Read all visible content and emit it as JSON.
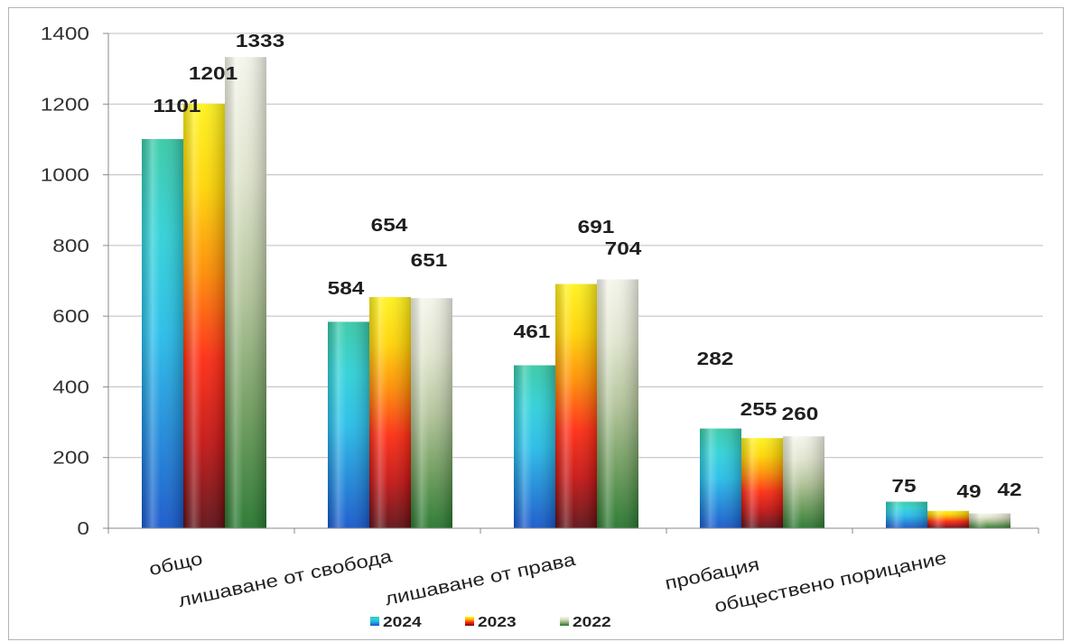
{
  "chart_data": {
    "type": "bar",
    "categories": [
      "общо",
      "лишаване от свобода",
      "лишаване от права",
      "пробация",
      "обществено порицание"
    ],
    "series": [
      {
        "name": "2024",
        "values": [
          1101,
          584,
          461,
          282,
          75
        ],
        "color": "#27c3e3"
      },
      {
        "name": "2023",
        "values": [
          1201,
          654,
          691,
          255,
          49
        ],
        "color": "#ff3a12"
      },
      {
        "name": "2022",
        "values": [
          1333,
          651,
          704,
          260,
          42
        ],
        "color": "#8db27a"
      }
    ],
    "ylim": [
      0,
      1400
    ],
    "yticks": [
      0,
      200,
      400,
      600,
      800,
      1000,
      1200,
      1400
    ],
    "grid": true,
    "legend": "bottom"
  }
}
